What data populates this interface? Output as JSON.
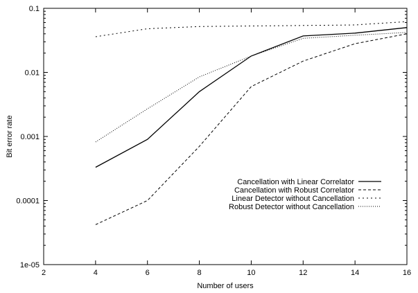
{
  "chart_data": {
    "type": "line",
    "title": "",
    "xlabel": "Number of users",
    "ylabel": "Bit error rate",
    "xlim": [
      2,
      16
    ],
    "ylim": [
      1e-05,
      0.1
    ],
    "yscale": "log",
    "grid": false,
    "legend_position": "right",
    "x_ticks": [
      {
        "value": 2,
        "label": "2"
      },
      {
        "value": 4,
        "label": "4"
      },
      {
        "value": 6,
        "label": "6"
      },
      {
        "value": 8,
        "label": "8"
      },
      {
        "value": 10,
        "label": "10"
      },
      {
        "value": 12,
        "label": "12"
      },
      {
        "value": 14,
        "label": "14"
      },
      {
        "value": 16,
        "label": "16"
      }
    ],
    "y_ticks": [
      {
        "value": 0.1,
        "label": "0.1"
      },
      {
        "value": 0.01,
        "label": "0.01"
      },
      {
        "value": 0.001,
        "label": "0.001"
      },
      {
        "value": 0.0001,
        "label": "0.0001"
      },
      {
        "value": 1e-05,
        "label": "1e-05"
      }
    ],
    "x": [
      4,
      6,
      8,
      10,
      12,
      14,
      16
    ],
    "series": [
      {
        "name": "Cancellation with Linear Correlator",
        "style": "solid",
        "values": [
          0.00033,
          0.0009,
          0.005,
          0.018,
          0.037,
          0.041,
          0.05
        ]
      },
      {
        "name": "Cancellation with Robust Correlator",
        "style": "dashed",
        "values": [
          4.2e-05,
          0.0001,
          0.0007,
          0.006,
          0.015,
          0.028,
          0.04
        ]
      },
      {
        "name": "Linear Detector without Cancellation",
        "style": "dotted",
        "values": [
          0.036,
          0.048,
          0.052,
          0.053,
          0.054,
          0.055,
          0.062
        ]
      },
      {
        "name": "Robust Detector without Cancellation",
        "style": "finedotted",
        "values": [
          0.00082,
          0.0027,
          0.0085,
          0.018,
          0.034,
          0.038,
          0.042
        ]
      }
    ]
  }
}
